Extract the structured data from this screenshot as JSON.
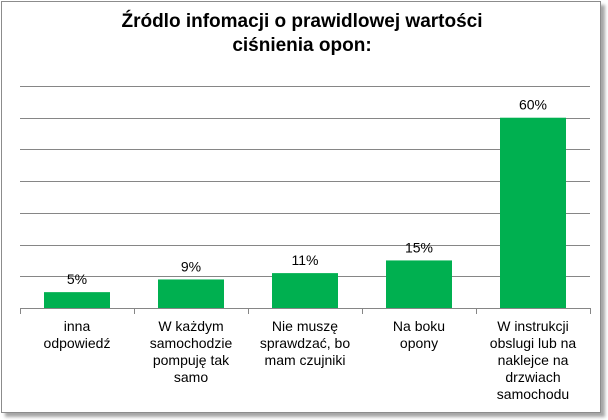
{
  "chart_data": {
    "type": "bar",
    "title": "Źródlo infomacji o prawidlowej wartości\nciśnienia opon:",
    "xlabel": "",
    "ylabel": "",
    "categories": [
      "inna\nodpowiedź",
      "W każdym\nsamochodzie\npompuję tak\nsamo",
      "Nie muszę\nsprawdzać, bo\nmam czujniki",
      "Na boku\nopony",
      "W instrukcji\nobslugi lub na\nnaklejce na\ndrzwiach\nsamochodu"
    ],
    "values": [
      5,
      9,
      11,
      15,
      60
    ],
    "data_labels": [
      "5%",
      "9%",
      "11%",
      "15%",
      "60%"
    ],
    "ylim": [
      0,
      70
    ],
    "grid": true,
    "legend": "none",
    "bar_color": "#00b050",
    "grid_color": "#868686"
  }
}
